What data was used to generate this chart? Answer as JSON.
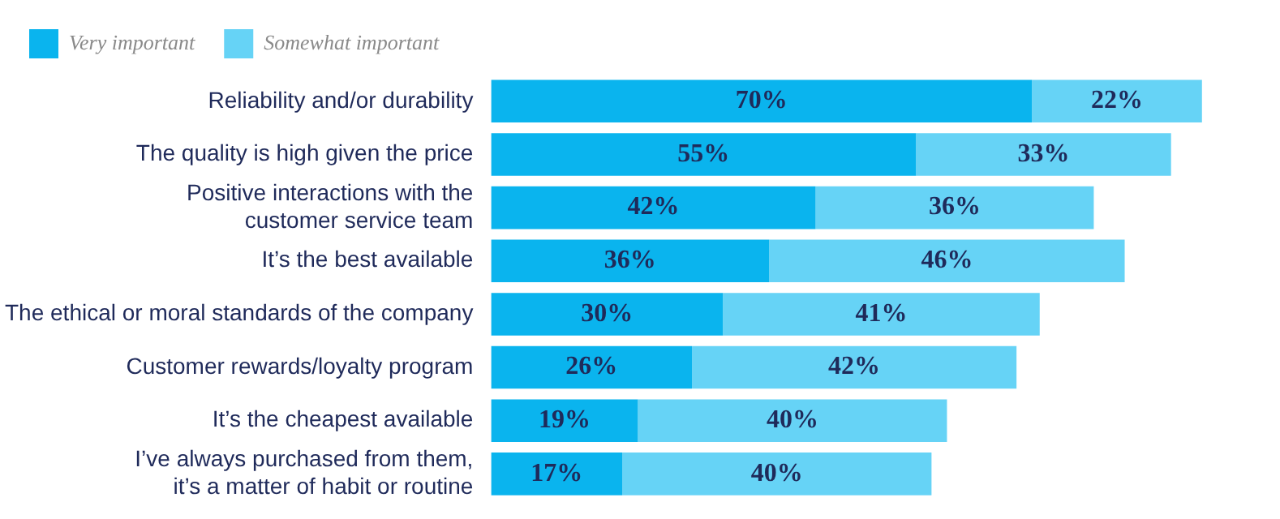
{
  "chart_data": {
    "type": "bar",
    "orientation": "horizontal",
    "stacked": true,
    "legend": "top left",
    "grid": false,
    "categories": [
      "Reliability and/or durability",
      "The quality is high given the price",
      "Positive interactions with the\ncustomer service team",
      "It’s the best available",
      "The ethical or moral standards of the company",
      "Customer rewards/loyalty program",
      "It’s the cheapest available",
      "I’ve always purchased from them,\nit’s a matter of habit or routine"
    ],
    "series": [
      {
        "name": "Very important",
        "color": "#0ab4ee",
        "values": [
          70,
          55,
          42,
          36,
          30,
          26,
          19,
          17
        ],
        "value_labels": [
          "70%",
          "55%",
          "42%",
          "36%",
          "30%",
          "26%",
          "19%",
          "17%"
        ]
      },
      {
        "name": "Somewhat important",
        "color": "#66d3f6",
        "values": [
          22,
          33,
          36,
          46,
          41,
          42,
          40,
          40
        ],
        "value_labels": [
          "22%",
          "33%",
          "36%",
          "46%",
          "41%",
          "42%",
          "40%",
          "40%"
        ]
      }
    ]
  }
}
